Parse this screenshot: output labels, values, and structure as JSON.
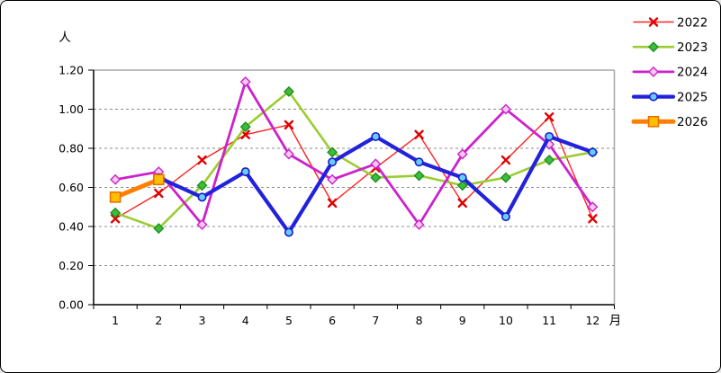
{
  "window": {
    "background": "#FFFFFF",
    "border_color": "#000000"
  },
  "chart_data": {
    "type": "line",
    "title": "",
    "y_unit_label": "人",
    "x_unit_label": "月",
    "categories": [
      "1",
      "2",
      "3",
      "4",
      "5",
      "6",
      "7",
      "8",
      "9",
      "10",
      "11",
      "12"
    ],
    "ylim": [
      0.0,
      1.2
    ],
    "ytick_step": 0.2,
    "ytick_labels": [
      "0.00",
      "0.20",
      "0.40",
      "0.60",
      "0.80",
      "1.00",
      "1.20"
    ],
    "grid": "horizontal-dashed",
    "gridline_color": "#8C8C8C",
    "axis_color": "#000000",
    "frame_color": "#A6A6A6",
    "legend_position": "top-right",
    "series": [
      {
        "name": "2022",
        "color": "#FF2222",
        "line_width": 1.4,
        "marker": "x",
        "marker_fill": "none",
        "marker_stroke": "#E00000",
        "values": [
          0.44,
          0.57,
          0.74,
          0.87,
          0.92,
          0.52,
          0.7,
          0.87,
          0.52,
          0.74,
          0.96,
          0.44
        ]
      },
      {
        "name": "2023",
        "color": "#9ACD32",
        "line_width": 2.6,
        "marker": "diamond",
        "marker_fill": "#3DBD3D",
        "marker_stroke": "#1F8F1F",
        "values": [
          0.47,
          0.39,
          0.61,
          0.91,
          1.09,
          0.78,
          0.65,
          0.66,
          0.61,
          0.65,
          0.74,
          0.78
        ]
      },
      {
        "name": "2024",
        "color": "#CC22CC",
        "line_width": 2.8,
        "marker": "diamond-open",
        "marker_fill": "#F9C8F2",
        "marker_stroke": "#CC22CC",
        "values": [
          0.64,
          0.68,
          0.41,
          1.14,
          0.77,
          0.64,
          0.72,
          0.41,
          0.77,
          1.0,
          0.82,
          0.5
        ]
      },
      {
        "name": "2025",
        "color": "#2222DD",
        "line_width": 4.2,
        "marker": "circle",
        "marker_fill": "#66CCFF",
        "marker_stroke": "#1A1AC8",
        "values": [
          null,
          0.65,
          0.55,
          0.68,
          0.37,
          0.73,
          0.86,
          0.73,
          0.65,
          0.45,
          0.86,
          0.78
        ]
      },
      {
        "name": "2026",
        "color": "#FF8000",
        "line_width": 5,
        "marker": "square",
        "marker_fill": "#FFBF00",
        "marker_stroke": "#E87000",
        "values": [
          0.55,
          0.64,
          null,
          null,
          null,
          null,
          null,
          null,
          null,
          null,
          null,
          null
        ]
      }
    ]
  }
}
